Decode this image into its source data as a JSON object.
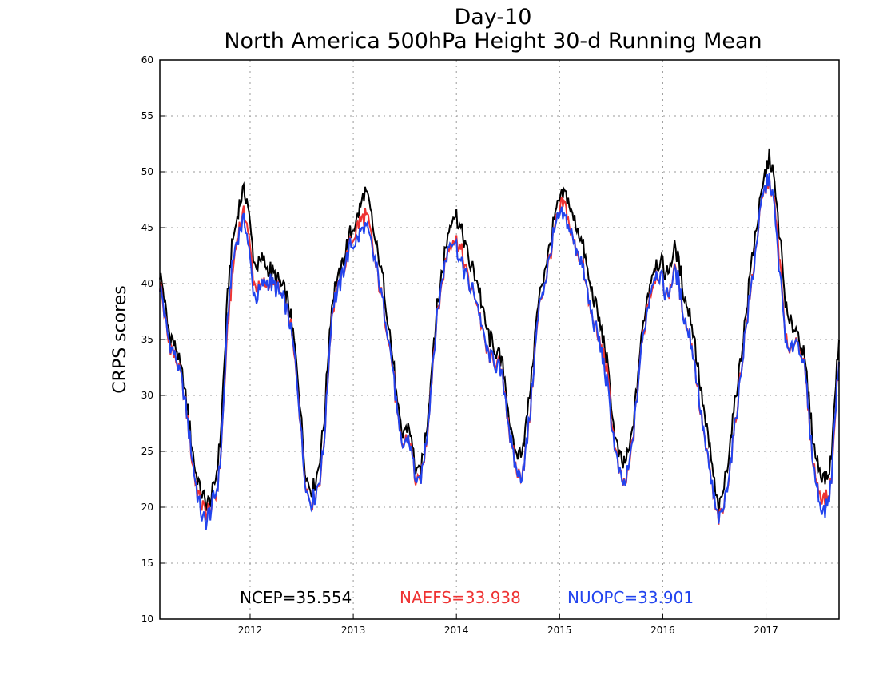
{
  "chart_data": {
    "type": "line",
    "title": "Day-10",
    "subtitle": "North America 500hPa Height 30-d Running Mean",
    "xlabel": "",
    "ylabel": "CRPS scores",
    "xlim": [
      "2011-03",
      "2017-10"
    ],
    "ylim": [
      10,
      60
    ],
    "y_ticks": [
      10,
      15,
      20,
      25,
      30,
      35,
      40,
      45,
      50,
      55,
      60
    ],
    "x_ticks": [
      "2012",
      "2013",
      "2014",
      "2015",
      "2016",
      "2017"
    ],
    "grid": true,
    "legend_position": "bottom-center",
    "x": [
      "2011-03",
      "2011-04",
      "2011-05",
      "2011-06",
      "2011-07",
      "2011-08",
      "2011-09",
      "2011-10",
      "2011-11",
      "2011-12",
      "2012-01",
      "2012-02",
      "2012-03",
      "2012-04",
      "2012-05",
      "2012-06",
      "2012-07",
      "2012-08",
      "2012-09",
      "2012-10",
      "2012-11",
      "2012-12",
      "2013-01",
      "2013-02",
      "2013-03",
      "2013-04",
      "2013-05",
      "2013-06",
      "2013-07",
      "2013-08",
      "2013-09",
      "2013-10",
      "2013-11",
      "2013-12",
      "2014-01",
      "2014-02",
      "2014-03",
      "2014-04",
      "2014-05",
      "2014-06",
      "2014-07",
      "2014-08",
      "2014-09",
      "2014-10",
      "2014-11",
      "2014-12",
      "2015-01",
      "2015-02",
      "2015-03",
      "2015-04",
      "2015-05",
      "2015-06",
      "2015-07",
      "2015-08",
      "2015-09",
      "2015-10",
      "2015-11",
      "2015-12",
      "2016-01",
      "2016-02",
      "2016-03",
      "2016-04",
      "2016-05",
      "2016-06",
      "2016-07",
      "2016-08",
      "2016-09",
      "2016-10",
      "2016-11",
      "2016-12",
      "2017-01",
      "2017-02",
      "2017-03",
      "2017-04",
      "2017-05",
      "2017-06",
      "2017-07",
      "2017-08",
      "2017-09",
      "2017-10"
    ],
    "series": [
      {
        "name": "NCEP=35.554",
        "color": "#000000",
        "values": [
          41,
          36,
          34,
          30,
          24,
          21,
          21,
          26,
          40,
          46,
          48,
          42,
          42,
          41,
          40,
          38,
          32,
          23,
          22,
          27,
          38,
          41,
          44,
          46,
          48,
          44,
          40,
          34,
          27,
          27,
          23,
          27,
          36,
          42,
          46,
          45,
          42,
          40,
          36,
          34,
          32,
          26,
          25,
          30,
          38,
          42,
          46,
          48,
          46,
          44,
          40,
          37,
          33,
          26,
          24,
          27,
          35,
          40,
          42,
          41,
          43,
          39,
          36,
          30,
          25,
          20,
          24,
          30,
          36,
          43,
          48,
          51,
          45,
          37,
          36,
          33,
          26,
          23,
          24,
          35
        ]
      },
      {
        "name": "NAEFS=33.938",
        "color": "#ee3333",
        "values": [
          40,
          35,
          33,
          29,
          23,
          20,
          20,
          24,
          37,
          44,
          46,
          40,
          40,
          40,
          39,
          37,
          31,
          22,
          21,
          25,
          37,
          40,
          43,
          45,
          46,
          42,
          38,
          33,
          26,
          26,
          22,
          26,
          35,
          41,
          44,
          43,
          40,
          38,
          34,
          33,
          31,
          25,
          23,
          28,
          37,
          41,
          45,
          47,
          44,
          42,
          38,
          35,
          32,
          25,
          22,
          26,
          34,
          39,
          41,
          39,
          41,
          37,
          34,
          28,
          23,
          19,
          22,
          28,
          35,
          41,
          47,
          49,
          43,
          34,
          35,
          32,
          24,
          21,
          22,
          33
        ]
      },
      {
        "name": "NUOPC=33.901",
        "color": "#2244ee",
        "values": [
          40,
          35,
          33,
          29,
          23,
          19,
          20,
          24,
          38,
          44,
          45,
          39,
          40,
          40,
          39,
          37,
          31,
          22,
          21,
          25,
          37,
          40,
          43,
          44,
          45,
          42,
          38,
          33,
          26,
          26,
          22,
          26,
          35,
          41,
          44,
          42,
          40,
          38,
          34,
          33,
          31,
          25,
          23,
          28,
          37,
          41,
          45,
          46,
          44,
          42,
          38,
          35,
          31,
          25,
          22,
          26,
          34,
          39,
          41,
          39,
          41,
          37,
          34,
          28,
          23,
          19,
          22,
          28,
          35,
          41,
          47,
          49,
          42,
          34,
          35,
          32,
          24,
          20,
          22,
          33
        ]
      }
    ]
  }
}
